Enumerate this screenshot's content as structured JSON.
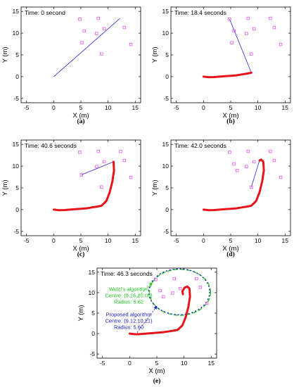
{
  "chart_data": [
    {
      "type": "line",
      "panel_label": "(a)",
      "time_label": "Time: 0 second",
      "xlabel": "X (m)",
      "ylabel": "Y (m)",
      "xlim": [
        -6,
        16
      ],
      "ylim": [
        -6,
        16
      ],
      "x_ticks": [
        -5,
        0,
        5,
        10,
        15
      ],
      "y_ticks": [
        -5,
        0,
        5,
        10,
        15
      ],
      "trajectory": [],
      "sight_line": [
        [
          0,
          0
        ],
        [
          12.2,
          13.4
        ]
      ],
      "targets": [
        [
          4.8,
          13.2
        ],
        [
          8.2,
          13.4
        ],
        [
          5.6,
          10.5
        ],
        [
          7.9,
          9.9
        ],
        [
          9.3,
          11.0
        ],
        [
          13.0,
          11.3
        ],
        [
          5.2,
          7.8
        ],
        [
          8.8,
          5.2
        ],
        [
          14.2,
          7.4
        ]
      ],
      "colors": {
        "path": "#e8141a",
        "sight": "#2a2ad6",
        "target": "#ee55ee"
      }
    },
    {
      "type": "line",
      "panel_label": "(b)",
      "time_label": "Time: 18.4 seconds",
      "xlabel": "X (m)",
      "ylabel": "Y (m)",
      "xlim": [
        -6,
        16
      ],
      "ylim": [
        -6,
        16
      ],
      "x_ticks": [
        -5,
        0,
        5,
        10,
        15
      ],
      "y_ticks": [
        -5,
        0,
        5,
        10,
        15
      ],
      "trajectory": [
        [
          0,
          0
        ],
        [
          1,
          -0.15
        ],
        [
          2,
          -0.1
        ],
        [
          3,
          0
        ],
        [
          4,
          0.1
        ],
        [
          5,
          0.2
        ],
        [
          6,
          0.3
        ],
        [
          7,
          0.5
        ],
        [
          8,
          0.7
        ],
        [
          8.8,
          0.9
        ]
      ],
      "sight_line": [
        [
          8.8,
          0.9
        ],
        [
          4.8,
          13.2
        ]
      ],
      "targets": [
        [
          4.8,
          13.2
        ],
        [
          8.2,
          13.4
        ],
        [
          5.6,
          10.5
        ],
        [
          7.9,
          9.9
        ],
        [
          9.3,
          11.0
        ],
        [
          13.0,
          11.3
        ],
        [
          5.2,
          7.8
        ],
        [
          8.8,
          5.2
        ],
        [
          14.2,
          7.4
        ],
        [
          12.3,
          13.4
        ]
      ],
      "colors": {
        "path": "#e8141a",
        "sight": "#2a2ad6",
        "target": "#ee55ee"
      }
    },
    {
      "type": "line",
      "panel_label": "(c)",
      "time_label": "Time: 40.6 seconds",
      "xlabel": "X (m)",
      "ylabel": "Y (m)",
      "xlim": [
        -6,
        16
      ],
      "ylim": [
        -6,
        16
      ],
      "x_ticks": [
        -5,
        0,
        5,
        10,
        15
      ],
      "y_ticks": [
        -5,
        0,
        5,
        10,
        15
      ],
      "trajectory": [
        [
          0,
          0
        ],
        [
          1,
          -0.15
        ],
        [
          2,
          -0.1
        ],
        [
          3,
          0
        ],
        [
          4,
          0.1
        ],
        [
          5,
          0.2
        ],
        [
          6,
          0.3
        ],
        [
          7,
          0.5
        ],
        [
          8,
          0.7
        ],
        [
          8.8,
          0.9
        ],
        [
          9.7,
          2.0
        ],
        [
          10.3,
          4.0
        ],
        [
          10.8,
          6.5
        ],
        [
          11.1,
          9.0
        ],
        [
          11.0,
          11.0
        ]
      ],
      "sight_line": [
        [
          11.0,
          11.0
        ],
        [
          5.1,
          8.0
        ]
      ],
      "targets": [
        [
          4.8,
          13.2
        ],
        [
          8.2,
          13.4
        ],
        [
          7.9,
          9.9
        ],
        [
          9.3,
          11.0
        ],
        [
          13.0,
          11.3
        ],
        [
          8.8,
          5.2
        ],
        [
          14.2,
          7.4
        ],
        [
          12.3,
          13.4
        ],
        [
          5.1,
          8.0
        ]
      ],
      "colors": {
        "path": "#e8141a",
        "sight": "#2a2ad6",
        "target": "#ee55ee"
      }
    },
    {
      "type": "line",
      "panel_label": "(d)",
      "time_label": "Time: 42.0 seconds",
      "xlabel": "X (m)",
      "ylabel": "Y (m)",
      "xlim": [
        -6,
        16
      ],
      "ylim": [
        -6,
        16
      ],
      "x_ticks": [
        -5,
        0,
        5,
        10,
        15
      ],
      "y_ticks": [
        -5,
        0,
        5,
        10,
        15
      ],
      "trajectory": [
        [
          0,
          0
        ],
        [
          1,
          -0.15
        ],
        [
          2,
          -0.1
        ],
        [
          3,
          0
        ],
        [
          4,
          0.1
        ],
        [
          5,
          0.2
        ],
        [
          6,
          0.3
        ],
        [
          7,
          0.5
        ],
        [
          8,
          0.7
        ],
        [
          8.8,
          0.9
        ],
        [
          9.7,
          2.0
        ],
        [
          10.3,
          4.0
        ],
        [
          10.8,
          6.5
        ],
        [
          11.1,
          9.0
        ],
        [
          11.0,
          11.0
        ],
        [
          10.6,
          11.5
        ],
        [
          10.3,
          11.3
        ]
      ],
      "sight_line": [
        [
          10.3,
          11.3
        ],
        [
          8.8,
          5.2
        ]
      ],
      "targets": [
        [
          4.8,
          13.2
        ],
        [
          8.2,
          13.4
        ],
        [
          5.6,
          10.5
        ],
        [
          7.9,
          9.9
        ],
        [
          9.3,
          11.0
        ],
        [
          13.0,
          11.3
        ],
        [
          8.8,
          5.2
        ],
        [
          14.2,
          7.4
        ],
        [
          12.3,
          13.4
        ],
        [
          6.2,
          9.0
        ]
      ],
      "colors": {
        "path": "#e8141a",
        "sight": "#2a2ad6",
        "target": "#ee55ee"
      }
    },
    {
      "type": "line",
      "panel_label": "(e)",
      "time_label": "Time: 46.3 seconds",
      "xlabel": "X (m)",
      "ylabel": "Y (m)",
      "xlim": [
        -6,
        16
      ],
      "ylim": [
        -6,
        16
      ],
      "x_ticks": [
        -5,
        0,
        5,
        10,
        15
      ],
      "y_ticks": [
        -5,
        0,
        5,
        10,
        15
      ],
      "trajectory": [
        [
          0,
          0
        ],
        [
          1,
          -0.15
        ],
        [
          2,
          -0.1
        ],
        [
          3,
          0
        ],
        [
          4,
          0.1
        ],
        [
          5,
          0.2
        ],
        [
          6,
          0.3
        ],
        [
          7,
          0.5
        ],
        [
          8,
          0.7
        ],
        [
          8.8,
          0.9
        ],
        [
          9.7,
          2.0
        ],
        [
          10.3,
          4.0
        ],
        [
          10.8,
          6.5
        ],
        [
          11.1,
          9.0
        ],
        [
          11.0,
          11.0
        ],
        [
          10.6,
          11.5
        ],
        [
          10.1,
          11.2
        ],
        [
          9.7,
          10.3
        ],
        [
          9.8,
          9.6
        ]
      ],
      "sight_line": [],
      "targets": [
        [
          4.8,
          13.2
        ],
        [
          8.2,
          13.4
        ],
        [
          5.6,
          10.5
        ],
        [
          7.9,
          9.9
        ],
        [
          9.3,
          11.0
        ],
        [
          13.0,
          11.3
        ],
        [
          14.2,
          7.4
        ],
        [
          12.3,
          13.4
        ],
        [
          6.2,
          9.0
        ]
      ],
      "circles": [
        {
          "center": [
            9.26,
            10.09
          ],
          "radius": 5.62,
          "color": "#22cc22",
          "dash": "6,3"
        },
        {
          "center": [
            9.12,
            10.21
          ],
          "radius": 5.6,
          "color": "#1a1acc",
          "dash": "2,3"
        }
      ],
      "annotations": [
        {
          "lines": [
            "Welzl's algorithm",
            "Centre: (9.26,10.09)",
            "Radius: 5.62"
          ],
          "color": "#22cc22",
          "label_xy": [
            -2.5,
            10.4
          ],
          "arrow_to": [
            4.2,
            12.5
          ]
        },
        {
          "lines": [
            "Proposed algorithm",
            "Centre: (9.12,10.21)",
            "Radius: 5.60"
          ],
          "color": "#1a1acc",
          "label_xy": [
            -2.5,
            4.2
          ],
          "arrow_to": [
            5.0,
            6.7
          ]
        }
      ],
      "colors": {
        "path": "#e8141a",
        "sight": "#2a2ad6",
        "target": "#ee55ee"
      }
    }
  ]
}
